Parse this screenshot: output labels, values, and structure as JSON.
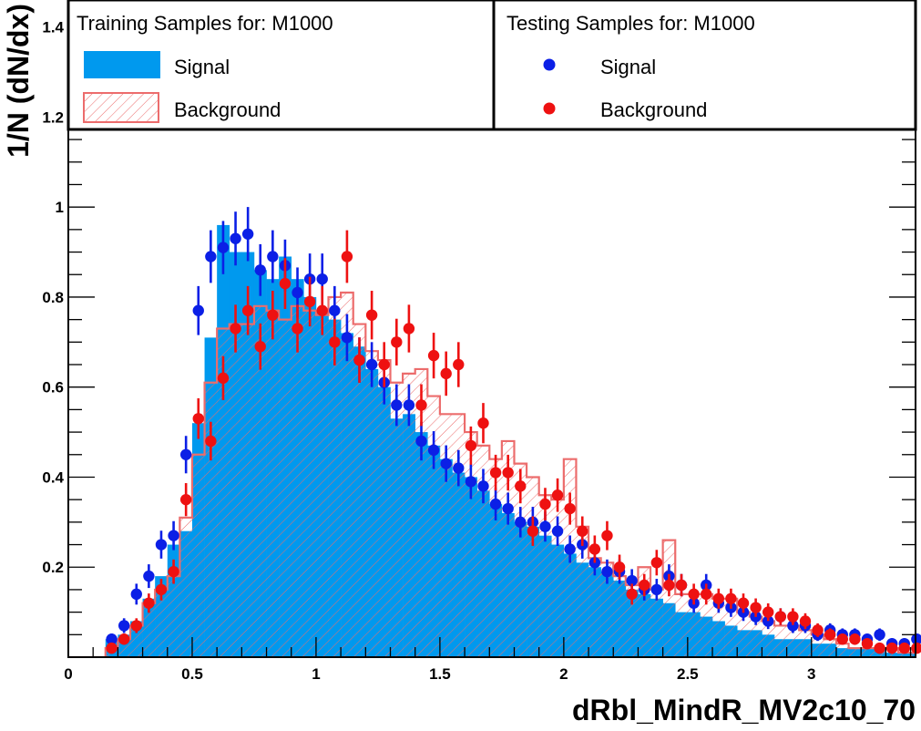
{
  "colors": {
    "signal_fill": "#0099ee",
    "signal_point": "#0b1fe6",
    "background_line": "#ec6c6c",
    "background_point": "#ee1111",
    "frame": "#000000"
  },
  "chart_data": {
    "type": "histogram",
    "xlabel": "dRbl_MindR_MV2c10_70",
    "ylabel": "1/N (dN/dx)",
    "xlim": [
      0,
      3.42
    ],
    "ylim": [
      0,
      1.46
    ],
    "x_ticks": [
      {
        "value": 0,
        "label": "0"
      },
      {
        "value": 0.5,
        "label": "0.5"
      },
      {
        "value": 1,
        "label": "1"
      },
      {
        "value": 1.5,
        "label": "1.5"
      },
      {
        "value": 2,
        "label": "2"
      },
      {
        "value": 2.5,
        "label": "2.5"
      },
      {
        "value": 3,
        "label": "3"
      }
    ],
    "y_ticks": [
      {
        "value": 0.2,
        "label": "0.2"
      },
      {
        "value": 0.4,
        "label": "0.4"
      },
      {
        "value": 0.6,
        "label": "0.6"
      },
      {
        "value": 0.8,
        "label": "0.8"
      },
      {
        "value": 1.0,
        "label": "1"
      },
      {
        "value": 1.2,
        "label": "1.2"
      },
      {
        "value": 1.4,
        "label": "1.4"
      }
    ],
    "grid": false,
    "bins": {
      "start": 0.1,
      "width": 0.05
    },
    "legend": {
      "training_title": "Training Samples for: M1000",
      "testing_title": "Testing Samples for: M1000",
      "signal_label": "Signal",
      "background_label": "Background"
    },
    "series": [
      {
        "name": "Signal",
        "kind": "training",
        "values": [
          0.0,
          0.04,
          0.05,
          0.08,
          0.13,
          0.18,
          0.25,
          0.28,
          0.52,
          0.71,
          0.96,
          0.9,
          0.9,
          0.86,
          0.84,
          0.89,
          0.84,
          0.8,
          0.77,
          0.75,
          0.72,
          0.69,
          0.64,
          0.6,
          0.53,
          0.54,
          0.5,
          0.47,
          0.44,
          0.41,
          0.4,
          0.37,
          0.34,
          0.32,
          0.3,
          0.29,
          0.27,
          0.25,
          0.23,
          0.21,
          0.2,
          0.19,
          0.17,
          0.15,
          0.14,
          0.13,
          0.12,
          0.1,
          0.1,
          0.09,
          0.08,
          0.07,
          0.06,
          0.06,
          0.05,
          0.04,
          0.04,
          0.04,
          0.03,
          0.03,
          0.02,
          0.02,
          0.02,
          0.02,
          0.01,
          0.01,
          0.01,
          0.01,
          0.01
        ]
      },
      {
        "name": "Background",
        "kind": "training",
        "values": [
          0.0,
          0.02,
          0.04,
          0.07,
          0.12,
          0.15,
          0.18,
          0.31,
          0.45,
          0.61,
          0.73,
          0.74,
          0.74,
          0.78,
          0.77,
          0.75,
          0.78,
          0.77,
          0.76,
          0.8,
          0.81,
          0.74,
          0.68,
          0.66,
          0.61,
          0.63,
          0.64,
          0.58,
          0.54,
          0.54,
          0.5,
          0.47,
          0.44,
          0.48,
          0.43,
          0.4,
          0.36,
          0.35,
          0.44,
          0.29,
          0.22,
          0.21,
          0.18,
          0.16,
          0.2,
          0.15,
          0.26,
          0.14,
          0.14,
          0.14,
          0.13,
          0.13,
          0.1,
          0.09,
          0.08,
          0.07,
          0.07,
          0.06,
          0.05,
          0.04,
          0.03,
          0.02,
          0.02,
          0.02,
          0.02,
          0.01,
          0.01,
          0.01,
          0.01
        ]
      },
      {
        "name": "Signal",
        "kind": "testing",
        "values": [
          0.0,
          0.04,
          0.07,
          0.14,
          0.18,
          0.25,
          0.27,
          0.45,
          0.77,
          0.89,
          0.91,
          0.93,
          0.94,
          0.86,
          0.89,
          0.87,
          0.81,
          0.84,
          0.84,
          0.77,
          0.71,
          0.66,
          0.65,
          0.61,
          0.56,
          0.56,
          0.48,
          0.46,
          0.43,
          0.42,
          0.39,
          0.38,
          0.34,
          0.33,
          0.3,
          0.3,
          0.29,
          0.28,
          0.24,
          0.25,
          0.21,
          0.19,
          0.19,
          0.17,
          0.15,
          0.15,
          0.18,
          0.16,
          0.12,
          0.16,
          0.12,
          0.11,
          0.1,
          0.09,
          0.08,
          0.09,
          0.07,
          0.07,
          0.05,
          0.06,
          0.05,
          0.05,
          0.04,
          0.05,
          0.03,
          0.03,
          0.04,
          0.03,
          0.02,
          0.02,
          0.02,
          0.01,
          0.01,
          0.01,
          0.01,
          0.01
        ]
      },
      {
        "name": "Background",
        "kind": "testing",
        "values": [
          0.0,
          0.02,
          0.04,
          0.07,
          0.12,
          0.15,
          0.19,
          0.35,
          0.53,
          0.48,
          0.62,
          0.73,
          0.77,
          0.69,
          0.76,
          0.83,
          0.73,
          0.79,
          0.77,
          0.7,
          0.89,
          0.66,
          0.76,
          0.65,
          0.7,
          0.73,
          0.56,
          0.67,
          0.63,
          0.65,
          0.47,
          0.52,
          0.41,
          0.41,
          0.38,
          0.28,
          0.34,
          0.36,
          0.33,
          0.28,
          0.24,
          0.27,
          0.2,
          0.14,
          0.16,
          0.21,
          0.16,
          0.16,
          0.14,
          0.14,
          0.13,
          0.13,
          0.12,
          0.11,
          0.1,
          0.09,
          0.09,
          0.08,
          0.06,
          0.05,
          0.04,
          0.04,
          0.03,
          0.02,
          0.02,
          0.02,
          0.02,
          0.01,
          0.01,
          0.01,
          0.01,
          0.01,
          0.01,
          0.01
        ]
      }
    ]
  }
}
